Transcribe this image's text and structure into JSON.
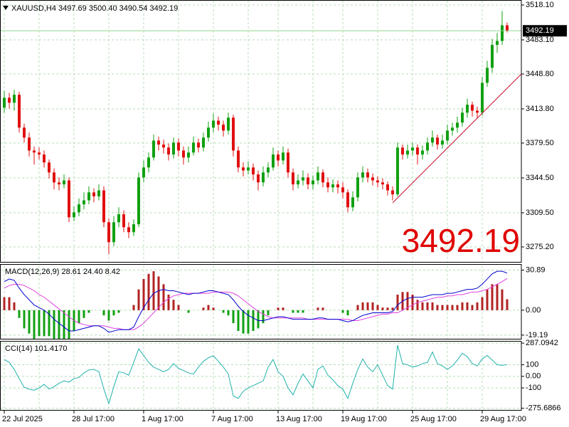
{
  "chart_data": [
    {
      "type": "candlestick",
      "title": "XAUUSD,H4 3497.69 3500.40 3490.54 3492.19",
      "categories": [
        "22 Jul 2025",
        null,
        null,
        null,
        null,
        null,
        null,
        null,
        null,
        null,
        null,
        null,
        null,
        null,
        "28 Jul 17:00",
        null,
        null,
        null,
        null,
        null,
        null,
        null,
        null,
        null,
        null,
        null,
        null,
        null,
        "1 Aug 17:00",
        null,
        null,
        null,
        null,
        null,
        null,
        null,
        null,
        null,
        null,
        null,
        null,
        null,
        "7 Aug 17:00",
        null,
        null,
        null,
        null,
        null,
        null,
        null,
        null,
        null,
        null,
        null,
        null,
        "13 Aug 17:00",
        null,
        null,
        null,
        null,
        null,
        null,
        null,
        null,
        null,
        null,
        null,
        null,
        "19 Aug 17:00",
        null,
        null,
        null,
        null,
        null,
        null,
        null,
        null,
        null,
        null,
        null,
        null,
        null,
        "25 Aug 17:00",
        null,
        null,
        null,
        null,
        null,
        null,
        null,
        null,
        null,
        null,
        null,
        null,
        null,
        "29 Aug 17:00",
        null,
        null,
        null,
        null,
        null
      ],
      "open": [
        3415,
        3425,
        3420,
        3428,
        3395,
        3385,
        3372,
        3370,
        3368,
        3360,
        3350,
        3340,
        3338,
        3342,
        3305,
        3310,
        3318,
        3322,
        3330,
        3326,
        3332,
        3300,
        3280,
        3300,
        3308,
        3295,
        3290,
        3298,
        3345,
        3355,
        3365,
        3382,
        3378,
        3375,
        3368,
        3380,
        3372,
        3365,
        3370,
        3380,
        3375,
        3385,
        3395,
        3402,
        3398,
        3392,
        3405,
        3372,
        3355,
        3352,
        3355,
        3348,
        3340,
        3350,
        3355,
        3368,
        3362,
        3370,
        3350,
        3338,
        3342,
        3345,
        3338,
        3342,
        3350,
        3340,
        3335,
        3338,
        3335,
        3330,
        3315,
        3325,
        3345,
        3350,
        3345,
        3342,
        3340,
        3338,
        3332,
        3328,
        3375,
        3368,
        3372,
        3375,
        3368,
        3372,
        3380,
        3385,
        3378,
        3382,
        3392,
        3395,
        3400,
        3410,
        3418,
        3412,
        3410,
        3440,
        3455,
        3478,
        3482,
        3497.69
      ],
      "high": [
        3432,
        3430,
        3433,
        3431,
        3399,
        3390,
        3376,
        3375,
        3372,
        3363,
        3354,
        3345,
        3348,
        3345,
        3316,
        3324,
        3330,
        3336,
        3334,
        3338,
        3336,
        3304,
        3306,
        3315,
        3312,
        3300,
        3303,
        3350,
        3362,
        3370,
        3388,
        3386,
        3383,
        3379,
        3385,
        3384,
        3376,
        3376,
        3386,
        3384,
        3390,
        3401,
        3409,
        3406,
        3402,
        3410,
        3408,
        3376,
        3360,
        3361,
        3359,
        3352,
        3356,
        3360,
        3375,
        3372,
        3376,
        3374,
        3354,
        3348,
        3352,
        3349,
        3347,
        3356,
        3353,
        3345,
        3343,
        3342,
        3340,
        3333,
        3331,
        3350,
        3356,
        3354,
        3349,
        3346,
        3344,
        3341,
        3336,
        3380,
        3378,
        3378,
        3380,
        3378,
        3377,
        3385,
        3392,
        3388,
        3388,
        3398,
        3400,
        3406,
        3415,
        3424,
        3421,
        3416,
        3446,
        3462,
        3484,
        3490,
        3512,
        3500.4
      ],
      "low": [
        3410,
        3414,
        3412,
        3390,
        3380,
        3366,
        3358,
        3363,
        3355,
        3344,
        3333,
        3332,
        3334,
        3300,
        3301,
        3306,
        3313,
        3318,
        3320,
        3322,
        3295,
        3268,
        3276,
        3295,
        3290,
        3284,
        3286,
        3295,
        3340,
        3350,
        3362,
        3372,
        3369,
        3362,
        3364,
        3366,
        3358,
        3360,
        3367,
        3370,
        3371,
        3381,
        3390,
        3392,
        3386,
        3388,
        3366,
        3350,
        3346,
        3348,
        3342,
        3332,
        3336,
        3345,
        3352,
        3356,
        3358,
        3345,
        3332,
        3334,
        3337,
        3333,
        3333,
        3338,
        3335,
        3330,
        3330,
        3329,
        3324,
        3310,
        3311,
        3321,
        3340,
        3340,
        3337,
        3335,
        3333,
        3327,
        3322,
        3326,
        3363,
        3364,
        3367,
        3358,
        3363,
        3368,
        3376,
        3373,
        3374,
        3378,
        3387,
        3390,
        3396,
        3405,
        3406,
        3404,
        3407,
        3436,
        3450,
        3470,
        3478,
        3490.54
      ],
      "close": [
        3425,
        3420,
        3428,
        3395,
        3385,
        3372,
        3370,
        3368,
        3360,
        3350,
        3340,
        3338,
        3342,
        3305,
        3310,
        3318,
        3322,
        3330,
        3326,
        3332,
        3300,
        3280,
        3300,
        3308,
        3295,
        3290,
        3298,
        3345,
        3355,
        3365,
        3382,
        3378,
        3375,
        3368,
        3380,
        3372,
        3365,
        3370,
        3380,
        3375,
        3385,
        3395,
        3402,
        3398,
        3392,
        3405,
        3372,
        3355,
        3352,
        3355,
        3348,
        3340,
        3350,
        3355,
        3368,
        3362,
        3370,
        3350,
        3338,
        3342,
        3345,
        3338,
        3342,
        3350,
        3340,
        3335,
        3338,
        3335,
        3330,
        3315,
        3325,
        3345,
        3350,
        3345,
        3342,
        3340,
        3338,
        3332,
        3328,
        3375,
        3368,
        3372,
        3375,
        3368,
        3372,
        3380,
        3385,
        3378,
        3382,
        3392,
        3395,
        3400,
        3410,
        3418,
        3412,
        3410,
        3440,
        3455,
        3478,
        3482,
        3497.69,
        3492.19
      ],
      "up_color": "#10a010",
      "down_color": "#e01010",
      "ylim": [
        3260.2,
        3523.1
      ],
      "yticks": [
        {
          "value": 3518.1,
          "label": "3518.10"
        },
        {
          "value": 3483.1,
          "label": "3483.10"
        },
        {
          "value": 3448.8,
          "label": "3448.80"
        },
        {
          "value": 3413.8,
          "label": "3413.80"
        },
        {
          "value": 3379.5,
          "label": "3379.50"
        },
        {
          "value": 3344.5,
          "label": "3344.50"
        },
        {
          "value": 3309.5,
          "label": "3309.50"
        },
        {
          "value": 3275.2,
          "label": "3275.20"
        }
      ],
      "grid": true,
      "last_price": 3492.19
    },
    {
      "type": "macd",
      "title": "MACD(12,26,9) 28.61 24.40 8.42",
      "main": {
        "color": "#0000cd",
        "values": [
          22,
          24,
          23,
          17,
          12,
          8,
          4,
          2,
          0,
          -3,
          -7,
          -10,
          -13,
          -16,
          -16,
          -15,
          -14,
          -13,
          -12,
          -12,
          -14,
          -17,
          -16,
          -15,
          -15,
          -15,
          -13,
          -5,
          2,
          8,
          13,
          15,
          16,
          15,
          15,
          14,
          13,
          12,
          13,
          13,
          14,
          15,
          15,
          14,
          13,
          12,
          8,
          3,
          -1,
          -4,
          -6,
          -8,
          -8,
          -7,
          -6,
          -5,
          -5,
          -6,
          -7,
          -7,
          -7,
          -7,
          -7,
          -6,
          -6,
          -7,
          -7,
          -7,
          -8,
          -9,
          -8,
          -6,
          -4,
          -3,
          -2,
          -2,
          -2,
          -2,
          -1,
          4,
          7,
          9,
          10,
          10,
          10,
          11,
          12,
          12,
          12,
          13,
          13,
          14,
          15,
          16,
          16,
          17,
          20,
          24,
          28,
          30,
          30,
          28.61
        ]
      },
      "signal": {
        "color": "#e040e0",
        "values": [
          17,
          19,
          20,
          20,
          19,
          17,
          15,
          12,
          10,
          7,
          4,
          1,
          -2,
          -5,
          -8,
          -10,
          -11,
          -12,
          -12,
          -12,
          -12,
          -13,
          -14,
          -14,
          -15,
          -15,
          -15,
          -13,
          -10,
          -6,
          -2,
          2,
          6,
          9,
          11,
          12,
          13,
          13,
          13,
          13,
          13,
          13,
          14,
          14,
          14,
          14,
          13,
          11,
          8,
          5,
          2,
          -1,
          -3,
          -5,
          -6,
          -6,
          -6,
          -6,
          -6,
          -6,
          -6,
          -7,
          -7,
          -7,
          -7,
          -7,
          -7,
          -7,
          -7,
          -7,
          -8,
          -8,
          -7,
          -6,
          -5,
          -4,
          -3,
          -3,
          -2,
          -2,
          0,
          2,
          4,
          6,
          7,
          8,
          9,
          10,
          10,
          11,
          11,
          12,
          12,
          13,
          14,
          14,
          15,
          16,
          18,
          20,
          22,
          24.4
        ]
      },
      "histogram": {
        "pos_color": "#b22222",
        "neg_color": "#10a010",
        "values": [
          10,
          10,
          6,
          -6,
          -14,
          -18,
          -22,
          -20,
          -20,
          -20,
          -22,
          -22,
          -22,
          -22,
          -16,
          -10,
          -6,
          -2,
          0,
          0,
          -4,
          -8,
          -4,
          -2,
          0,
          0,
          4,
          16,
          24,
          28,
          30,
          26,
          20,
          12,
          8,
          4,
          0,
          -2,
          0,
          0,
          2,
          4,
          2,
          0,
          -2,
          -4,
          -10,
          -16,
          -18,
          -18,
          -16,
          -14,
          -10,
          -4,
          0,
          2,
          2,
          0,
          -2,
          -2,
          -2,
          0,
          0,
          2,
          2,
          0,
          0,
          0,
          -2,
          -4,
          0,
          4,
          6,
          6,
          6,
          4,
          2,
          2,
          2,
          12,
          14,
          14,
          12,
          8,
          6,
          6,
          6,
          4,
          4,
          4,
          4,
          4,
          6,
          6,
          4,
          6,
          10,
          16,
          20,
          20,
          16,
          8.42
        ]
      },
      "ylim": [
        -22,
        35
      ],
      "yticks": [
        30.89,
        {
          "value": 0,
          "label": "0.00"
        },
        -19.19
      ]
    },
    {
      "type": "line",
      "title": "CCI(14) 101.4170",
      "color": "#20b2aa",
      "values": [
        146,
        120,
        60,
        -20,
        -95,
        -110,
        -120,
        -100,
        -70,
        -110,
        -90,
        -60,
        -40,
        -50,
        -20,
        -10,
        30,
        55,
        60,
        40,
        -110,
        -235,
        -90,
        40,
        30,
        10,
        120,
        238,
        180,
        120,
        80,
        60,
        40,
        60,
        110,
        70,
        50,
        30,
        20,
        80,
        130,
        160,
        177,
        130,
        80,
        20,
        -170,
        -190,
        -130,
        -100,
        -80,
        -60,
        -40,
        80,
        146,
        40,
        0,
        -100,
        -160,
        -60,
        20,
        -40,
        -100,
        60,
        90,
        10,
        -30,
        -80,
        -110,
        -190,
        -60,
        60,
        150,
        80,
        40,
        100,
        10,
        -80,
        -110,
        270,
        110,
        100,
        80,
        90,
        110,
        120,
        210,
        110,
        90,
        60,
        90,
        140,
        200,
        170,
        110,
        90,
        150,
        180,
        140,
        100,
        95,
        101.417
      ],
      "ylim": [
        -290,
        300
      ],
      "yticks": [
        287.0942,
        100,
        {
          "value": 0,
          "label": "0.00"
        },
        -100,
        -275.6866
      ]
    }
  ]
}
